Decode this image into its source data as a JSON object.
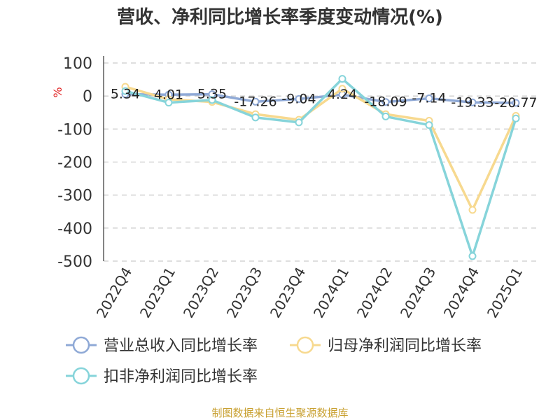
{
  "chart_data": {
    "type": "line",
    "title": "营收、净利同比增长率季度变动情况(%)",
    "ylabel": "%",
    "ylim": [
      -500,
      100
    ],
    "yticks": [
      100,
      0,
      -100,
      -200,
      -300,
      -400,
      -500
    ],
    "grid": true,
    "legend_position": "bottom",
    "categories": [
      "2022Q4",
      "2023Q1",
      "2023Q2",
      "2023Q3",
      "2023Q4",
      "2024Q1",
      "2024Q2",
      "2024Q3",
      "2024Q4",
      "2025Q1"
    ],
    "series": [
      {
        "name": "营业总收入同比增长率",
        "color": "#8fa9d6",
        "values": [
          5.34,
          4.01,
          5.35,
          -17.26,
          -9.04,
          4.24,
          -18.09,
          -7.14,
          -19.33,
          -20.77
        ],
        "labels": [
          "5.34",
          "4.01",
          "5.35",
          "-17.26",
          "-9.04",
          "4.24",
          "-18.09",
          "-7.14",
          "-19.33",
          "-20.77"
        ]
      },
      {
        "name": "归母净利润同比增长率",
        "color": "#f7d98f",
        "values": [
          28,
          -10,
          -18,
          -55,
          -72,
          22,
          -55,
          -75,
          -345,
          -60
        ]
      },
      {
        "name": "扣非净利润同比增长率",
        "color": "#86d4da",
        "values": [
          15,
          -20,
          -12,
          -65,
          -80,
          52,
          -62,
          -88,
          -485,
          -68
        ]
      }
    ]
  },
  "source": "制图数据来自恒生聚源数据库"
}
